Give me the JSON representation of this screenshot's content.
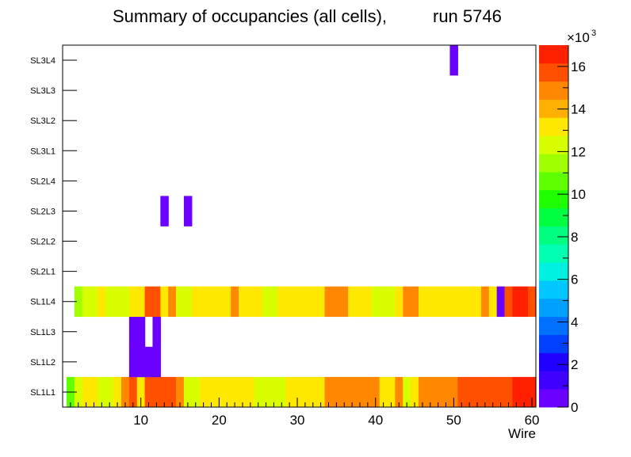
{
  "chart_data": {
    "type": "heatmap",
    "title_main": "Summary of occupancies (all cells),",
    "title_run": "run 5746",
    "xlabel": "Wire",
    "xlim": [
      0,
      60.5
    ],
    "x_ticks": [
      10,
      20,
      30,
      40,
      50,
      60
    ],
    "y_categories": [
      "SL1L1",
      "SL1L2",
      "SL1L3",
      "SL1L4",
      "SL2L1",
      "SL2L2",
      "SL2L3",
      "SL2L4",
      "SL3L1",
      "SL3L2",
      "SL3L3",
      "SL3L4"
    ],
    "z_min": 0,
    "z_max": 17000,
    "z_ticks": [
      0,
      2,
      4,
      6,
      8,
      10,
      12,
      14,
      16
    ],
    "z_multiplier": "×10",
    "z_exponent": "3",
    "palette": [
      "#6a00ff",
      "#3f00ff",
      "#2000ff",
      "#0040ff",
      "#0070ff",
      "#00a0ff",
      "#00c8ff",
      "#00f0e0",
      "#00ffb0",
      "#00ff80",
      "#00ff40",
      "#20ff00",
      "#60ff00",
      "#a0ff00",
      "#d8ff00",
      "#ffe800",
      "#ffb000",
      "#ff8800",
      "#ff5000",
      "#ff2000"
    ],
    "rows": [
      {
        "layer": "SL1L1",
        "x0": 0.5,
        "values": [
          11000,
          12500,
          13000,
          13000,
          12500,
          12500,
          13000,
          14500,
          15500,
          13500,
          15500,
          16000,
          16000,
          16000,
          14500,
          12500,
          12000,
          13000,
          13000,
          13000,
          13000,
          13000,
          13000,
          13000,
          12500,
          12500,
          12500,
          12500,
          13000,
          13000,
          13000,
          13000,
          13000,
          14500,
          14500,
          14500,
          14500,
          14500,
          14500,
          14500,
          13000,
          13000,
          14500,
          12500,
          13000,
          14500,
          14500,
          14500,
          14500,
          14500,
          16000,
          16000,
          16000,
          16000,
          16000,
          16000,
          16000,
          17000,
          17000,
          17000
        ]
      },
      {
        "layer": "SL1L2",
        "x0": 8.5,
        "values": [
          500,
          500,
          500,
          500
        ]
      },
      {
        "layer": "SL1L3",
        "x0": 8.5,
        "values": [
          500,
          500,
          null,
          500
        ]
      },
      {
        "layer": "SL1L4",
        "x0": 0.5,
        "values": [
          null,
          11500,
          12500,
          12500,
          13000,
          12000,
          12000,
          12000,
          13000,
          13500,
          15500,
          15500,
          13500,
          14500,
          12500,
          12000,
          13000,
          13000,
          13000,
          13000,
          13000,
          14500,
          13000,
          13000,
          13000,
          12000,
          12000,
          13000,
          13000,
          13000,
          13000,
          13000,
          13000,
          14500,
          14500,
          14500,
          13000,
          13000,
          13000,
          12000,
          12500,
          12000,
          13000,
          14500,
          14500,
          13000,
          13000,
          13000,
          13000,
          13000,
          13000,
          13000,
          13000,
          14500,
          13000,
          500,
          15500,
          17000,
          17000,
          15500
        ]
      },
      {
        "layer": "SL2L3",
        "x0": 12.5,
        "values": [
          500,
          null,
          null,
          500
        ]
      },
      {
        "layer": "SL3L4",
        "x0": 49.5,
        "values": [
          500
        ]
      }
    ]
  }
}
